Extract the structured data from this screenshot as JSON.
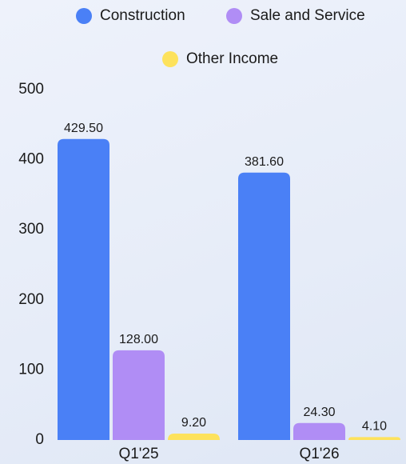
{
  "chart_data": {
    "type": "bar",
    "categories": [
      "Q1'25",
      "Q1'26"
    ],
    "series": [
      {
        "name": "Construction",
        "color": "#4a80f6",
        "values": [
          429.5,
          381.6
        ],
        "value_labels": [
          "429.50",
          "381.60"
        ]
      },
      {
        "name": "Sale and Service",
        "color": "#b08df5",
        "values": [
          128,
          24.3
        ],
        "value_labels": [
          "128.00",
          "24.30"
        ]
      },
      {
        "name": "Other Income",
        "color": "#fde25c",
        "values": [
          9.2,
          4.1
        ],
        "value_labels": [
          "9.20",
          "4.10"
        ]
      }
    ],
    "ylim": [
      0,
      500
    ],
    "yticks": [
      0,
      100,
      200,
      300,
      400,
      500
    ],
    "legend": "top"
  }
}
